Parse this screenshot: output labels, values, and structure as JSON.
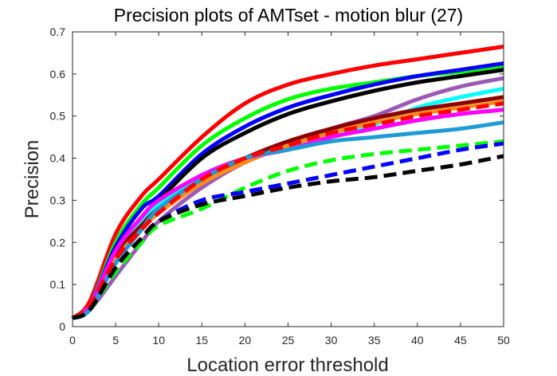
{
  "chart_data": {
    "type": "line",
    "title": "Precision plots of AMTset - motion blur (27)",
    "xlabel": "Location error threshold",
    "ylabel": "Precision",
    "xlim": [
      0,
      50
    ],
    "ylim": [
      0,
      0.7
    ],
    "x_ticks": [
      0,
      5,
      10,
      15,
      20,
      25,
      30,
      35,
      40,
      45,
      50
    ],
    "y_ticks": [
      0,
      0.1,
      0.2,
      0.3,
      0.4,
      0.5,
      0.6,
      0.7
    ],
    "grid": false,
    "legend": "none",
    "x": [
      0,
      2,
      5,
      8,
      10,
      15,
      20,
      25,
      30,
      35,
      40,
      45,
      50
    ],
    "series": [
      {
        "color": "#ff0000",
        "dash": "solid",
        "values": [
          0.02,
          0.06,
          0.22,
          0.31,
          0.35,
          0.45,
          0.53,
          0.575,
          0.6,
          0.62,
          0.635,
          0.65,
          0.665
        ]
      },
      {
        "color": "#00ff00",
        "dash": "solid",
        "values": [
          0.02,
          0.05,
          0.2,
          0.29,
          0.33,
          0.43,
          0.495,
          0.54,
          0.565,
          0.58,
          0.595,
          0.605,
          0.615
        ]
      },
      {
        "color": "#0000ff",
        "dash": "solid",
        "values": [
          0.02,
          0.05,
          0.19,
          0.28,
          0.31,
          0.41,
          0.475,
          0.52,
          0.55,
          0.575,
          0.595,
          0.61,
          0.625
        ]
      },
      {
        "color": "#000000",
        "dash": "solid",
        "values": [
          0.02,
          0.05,
          0.18,
          0.26,
          0.3,
          0.4,
          0.46,
          0.505,
          0.535,
          0.56,
          0.58,
          0.595,
          0.61
        ]
      },
      {
        "color": "#9b59b6",
        "dash": "solid",
        "values": [
          0.02,
          0.04,
          0.12,
          0.2,
          0.25,
          0.33,
          0.39,
          0.43,
          0.47,
          0.5,
          0.54,
          0.57,
          0.59
        ]
      },
      {
        "color": "#00ffff",
        "dash": "solid",
        "values": [
          0.02,
          0.05,
          0.18,
          0.25,
          0.29,
          0.36,
          0.4,
          0.43,
          0.45,
          0.48,
          0.52,
          0.545,
          0.565
        ]
      },
      {
        "color": "#8b0000",
        "dash": "solid",
        "values": [
          0.02,
          0.05,
          0.17,
          0.24,
          0.28,
          0.35,
          0.4,
          0.44,
          0.47,
          0.495,
          0.515,
          0.53,
          0.545
        ]
      },
      {
        "color": "#ff8c1a",
        "dash": "solid",
        "values": [
          0.02,
          0.05,
          0.16,
          0.23,
          0.27,
          0.34,
          0.39,
          0.43,
          0.46,
          0.485,
          0.505,
          0.52,
          0.535
        ]
      },
      {
        "color": "#ff00ff",
        "dash": "solid",
        "values": [
          0.02,
          0.05,
          0.18,
          0.26,
          0.3,
          0.36,
          0.4,
          0.42,
          0.45,
          0.47,
          0.49,
          0.505,
          0.515
        ]
      },
      {
        "color": "#1e9bd7",
        "dash": "solid",
        "values": [
          0.02,
          0.04,
          0.15,
          0.23,
          0.28,
          0.35,
          0.4,
          0.42,
          0.44,
          0.45,
          0.46,
          0.47,
          0.485
        ]
      },
      {
        "color": "#ff0000",
        "dash": "dashed",
        "values": [
          0.02,
          0.05,
          0.16,
          0.23,
          0.27,
          0.35,
          0.4,
          0.43,
          0.46,
          0.48,
          0.5,
          0.515,
          0.53
        ]
      },
      {
        "color": "#00ff00",
        "dash": "dashed",
        "values": [
          0.02,
          0.04,
          0.13,
          0.2,
          0.24,
          0.28,
          0.33,
          0.37,
          0.395,
          0.41,
          0.42,
          0.43,
          0.44
        ]
      },
      {
        "color": "#0000ff",
        "dash": "dashed",
        "values": [
          0.02,
          0.04,
          0.14,
          0.21,
          0.25,
          0.3,
          0.32,
          0.34,
          0.36,
          0.38,
          0.4,
          0.42,
          0.435
        ]
      },
      {
        "color": "#000000",
        "dash": "dashed",
        "values": [
          0.02,
          0.04,
          0.14,
          0.21,
          0.25,
          0.29,
          0.31,
          0.33,
          0.345,
          0.355,
          0.37,
          0.385,
          0.405
        ]
      }
    ]
  }
}
